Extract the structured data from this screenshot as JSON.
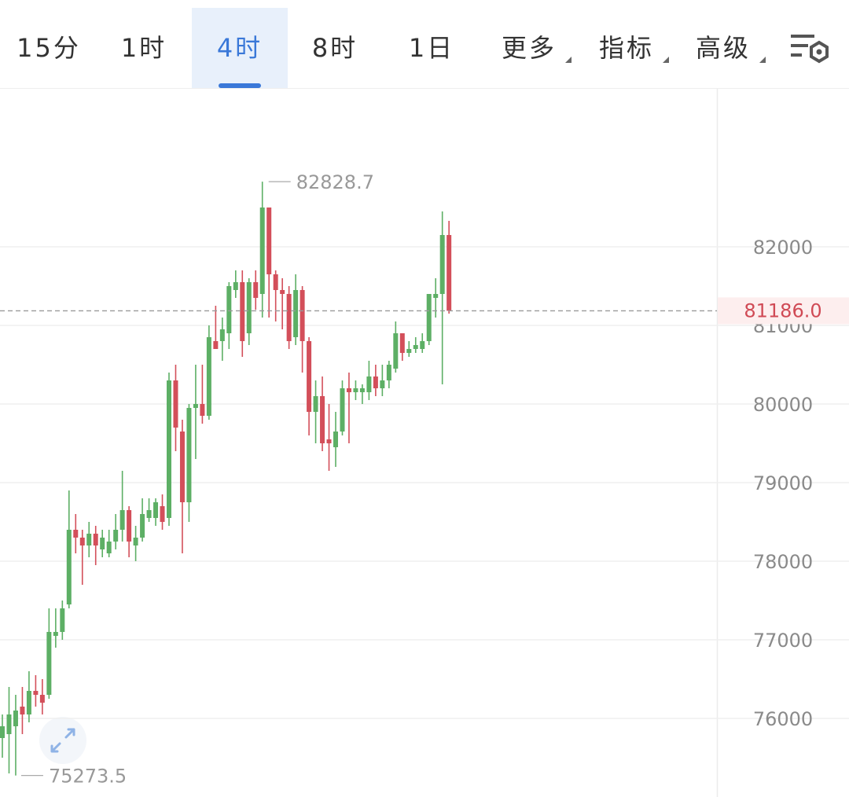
{
  "tabs": [
    "15分",
    "1时",
    "4时",
    "8时",
    "1日",
    "更多",
    "指标",
    "高级"
  ],
  "active_tab": 2,
  "chart_data": {
    "type": "candlestick",
    "up_color": "#5daf65",
    "down_color": "#d34f5a",
    "ylim": [
      75000,
      84020
    ],
    "yticks": [
      76000,
      77000,
      78000,
      79000,
      80000,
      81000,
      82000
    ],
    "grid": true,
    "open": [
      75750,
      75800,
      75900,
      76150,
      76050,
      76350,
      76300,
      76300,
      77050,
      77100,
      77450,
      78400,
      78300,
      78200,
      78350,
      78150,
      78100,
      78250,
      78400,
      78650,
      78200,
      78300,
      78550,
      78550,
      78700,
      78550,
      80300,
      79650,
      78750,
      79950,
      80000,
      79850,
      80800,
      80800,
      80900,
      81450,
      81550,
      80900,
      81550,
      81400,
      82500,
      81650,
      81450,
      81400,
      80850,
      81450,
      80800,
      79900,
      80100,
      79550,
      79450,
      79650,
      80200,
      80150,
      80150,
      80150,
      80350,
      80200,
      80300,
      80450,
      80900,
      80650,
      80700,
      80700,
      80800,
      81350,
      81400,
      82150
    ],
    "high": [
      76050,
      76400,
      76300,
      76400,
      76600,
      76550,
      76500,
      77400,
      77400,
      77500,
      78900,
      78600,
      78400,
      78500,
      78450,
      78400,
      78400,
      78600,
      79150,
      78700,
      78450,
      78800,
      78800,
      78800,
      78850,
      80400,
      80500,
      79800,
      80000,
      80500,
      80500,
      81000,
      81250,
      81100,
      81550,
      81700,
      81700,
      81600,
      81700,
      82828.7,
      82500,
      81700,
      81600,
      81500,
      81650,
      81500,
      80850,
      80300,
      80350,
      80000,
      79900,
      80300,
      80400,
      80300,
      80250,
      80550,
      80500,
      80500,
      80550,
      81050,
      80900,
      80800,
      80850,
      80900,
      81400,
      81600,
      82450,
      82330
    ],
    "low": [
      75500,
      75300,
      75273.5,
      75800,
      75950,
      76150,
      76050,
      76250,
      76900,
      77000,
      77400,
      78100,
      77700,
      78050,
      77950,
      78050,
      78050,
      78150,
      78250,
      78050,
      78000,
      78250,
      78500,
      78450,
      78400,
      78450,
      79400,
      78100,
      78500,
      79300,
      79750,
      79800,
      80700,
      80550,
      80700,
      81350,
      80600,
      80750,
      81200,
      81100,
      81100,
      81050,
      80950,
      80700,
      80750,
      80400,
      79600,
      79500,
      79400,
      79150,
      79200,
      79600,
      79500,
      80050,
      80000,
      80050,
      80100,
      80100,
      80200,
      80400,
      80550,
      80600,
      80650,
      80650,
      80750,
      81100,
      80250,
      81150
    ],
    "close": [
      75900,
      76050,
      76100,
      76050,
      76350,
      76300,
      76200,
      77100,
      77100,
      77400,
      78400,
      78300,
      78200,
      78350,
      78200,
      78300,
      78250,
      78400,
      78650,
      78250,
      78300,
      78600,
      78650,
      78750,
      78500,
      80300,
      79700,
      78750,
      79950,
      80000,
      79850,
      80850,
      80700,
      80950,
      81500,
      81550,
      80800,
      81550,
      81350,
      82500,
      81650,
      81450,
      81400,
      80800,
      81450,
      80800,
      79900,
      80100,
      79500,
      79500,
      79650,
      80200,
      80150,
      80200,
      80200,
      80350,
      80200,
      80300,
      80500,
      80900,
      80650,
      80700,
      80750,
      80800,
      81400,
      81400,
      82150,
      81186
    ],
    "current_price": {
      "value": 81186,
      "label": "81186.0"
    }
  }
}
